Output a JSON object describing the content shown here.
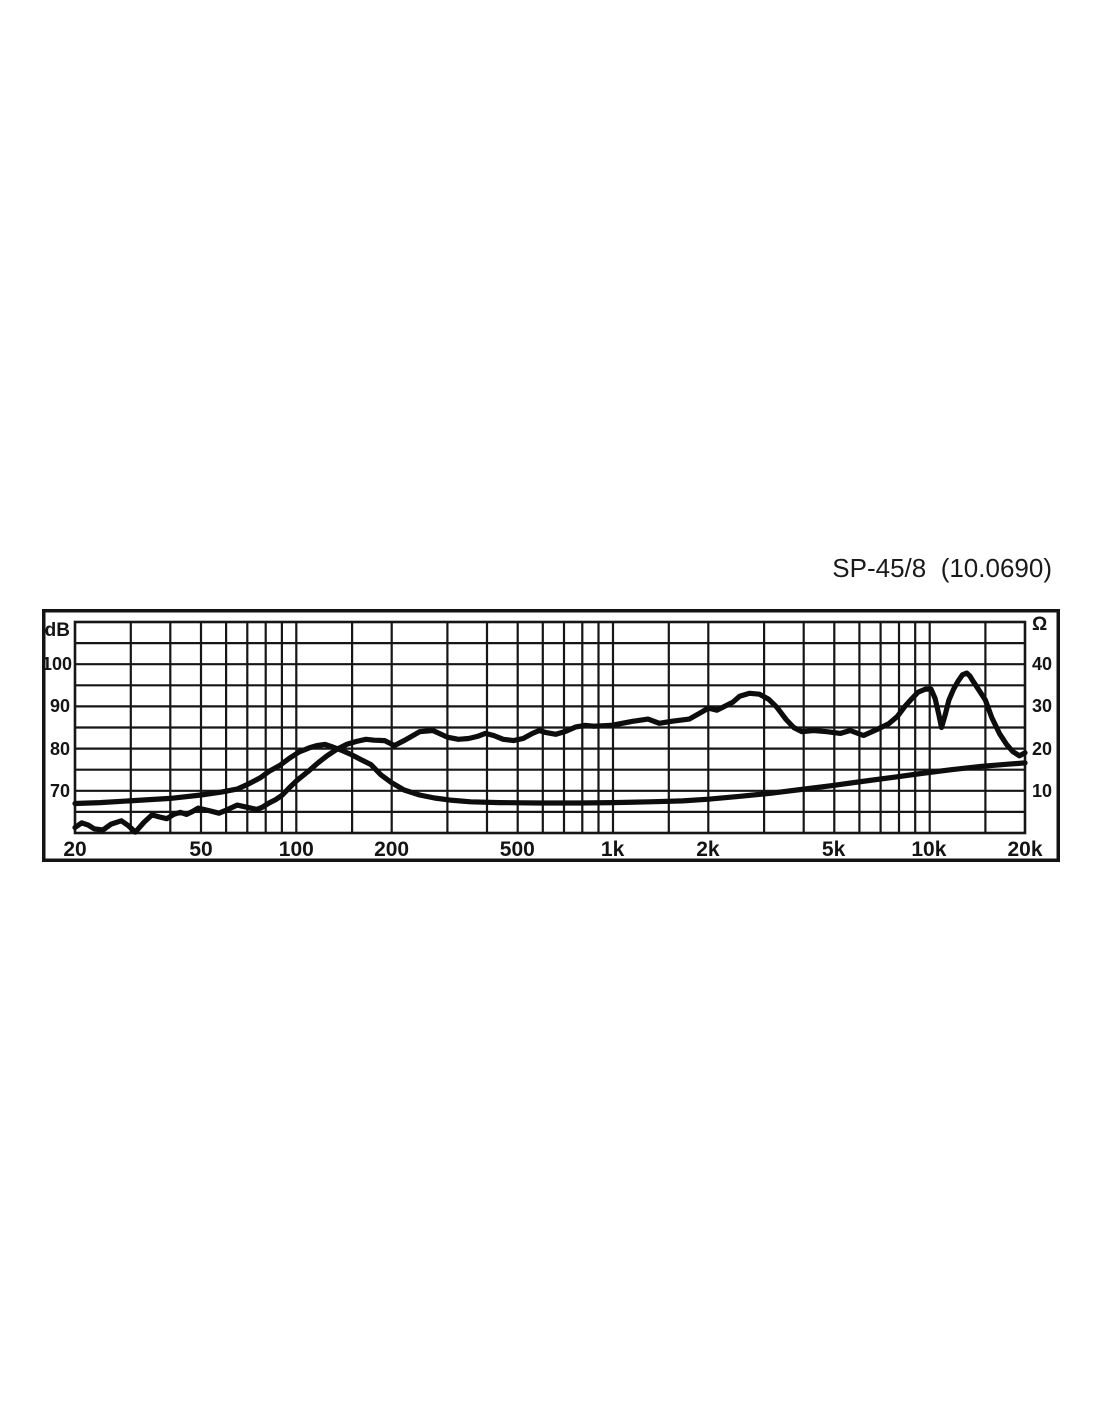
{
  "title": "SP-45/8  (10.0690)",
  "chart_data": {
    "type": "line",
    "description": "Loudspeaker frequency response (dB SPL) and impedance (ohm) vs frequency",
    "grid": true,
    "legend": "none",
    "x_axis": {
      "scale": "log",
      "min_hz": 20,
      "max_hz": 20000,
      "tick_labels": [
        "20",
        "50",
        "100",
        "200",
        "500",
        "1k",
        "2k",
        "5k",
        "10k",
        "20k"
      ],
      "tick_values_hz": [
        20,
        50,
        100,
        200,
        500,
        1000,
        2000,
        5000,
        10000,
        20000
      ],
      "gridline_values_hz": [
        30,
        40,
        50,
        60,
        70,
        80,
        90,
        100,
        150,
        200,
        300,
        400,
        500,
        600,
        700,
        800,
        900,
        1000,
        1500,
        2000,
        3000,
        4000,
        5000,
        6000,
        7000,
        8000,
        9000,
        10000,
        15000
      ]
    },
    "y_axis_left": {
      "label": "dB",
      "min": 60,
      "max": 110,
      "tick_labels": [
        "100",
        "90",
        "80",
        "70"
      ],
      "tick_values": [
        100,
        90,
        80,
        70
      ],
      "gridline_values": [
        105,
        100,
        95,
        90,
        85,
        80,
        75,
        70,
        65
      ]
    },
    "y_axis_right": {
      "label": "Ω",
      "min": 0,
      "max": 50,
      "tick_labels": [
        "40",
        "30",
        "20",
        "10"
      ],
      "tick_values": [
        40,
        30,
        20,
        10
      ]
    },
    "line_color": "#0d0d0d",
    "grid_color": "#161616",
    "series": [
      {
        "name": "frequency-response-spl",
        "unit": "dB",
        "axis": "left",
        "points": [
          [
            20,
            61.3
          ],
          [
            21,
            62.4
          ],
          [
            22,
            61.9
          ],
          [
            23,
            61.0
          ],
          [
            24.5,
            60.7
          ],
          [
            26,
            62.1
          ],
          [
            28,
            62.9
          ],
          [
            29.5,
            61.7
          ],
          [
            31,
            60.2
          ],
          [
            33,
            62.5
          ],
          [
            35,
            64.3
          ],
          [
            37,
            63.8
          ],
          [
            39,
            63.4
          ],
          [
            41,
            64.4
          ],
          [
            43,
            64.9
          ],
          [
            45,
            64.4
          ],
          [
            47,
            65.1
          ],
          [
            49,
            65.9
          ],
          [
            53,
            65.3
          ],
          [
            57,
            64.7
          ],
          [
            60,
            65.4
          ],
          [
            65,
            66.6
          ],
          [
            70,
            66.1
          ],
          [
            75,
            65.6
          ],
          [
            78,
            66.1
          ],
          [
            82,
            67.1
          ],
          [
            86,
            67.9
          ],
          [
            90,
            68.9
          ],
          [
            95,
            70.7
          ],
          [
            101,
            72.6
          ],
          [
            109,
            74.6
          ],
          [
            117,
            76.6
          ],
          [
            125,
            78.3
          ],
          [
            134,
            79.8
          ],
          [
            144,
            81.0
          ],
          [
            155,
            81.7
          ],
          [
            166,
            82.2
          ],
          [
            176,
            82.0
          ],
          [
            190,
            81.9
          ],
          [
            204,
            80.7
          ],
          [
            219,
            81.9
          ],
          [
            245,
            84.0
          ],
          [
            270,
            84.3
          ],
          [
            300,
            82.7
          ],
          [
            325,
            82.2
          ],
          [
            350,
            82.4
          ],
          [
            373,
            82.9
          ],
          [
            395,
            83.6
          ],
          [
            420,
            83.1
          ],
          [
            450,
            82.2
          ],
          [
            485,
            81.9
          ],
          [
            520,
            82.4
          ],
          [
            557,
            83.6
          ],
          [
            585,
            84.3
          ],
          [
            615,
            83.8
          ],
          [
            660,
            83.4
          ],
          [
            710,
            84.1
          ],
          [
            760,
            85.1
          ],
          [
            815,
            85.5
          ],
          [
            870,
            85.3
          ],
          [
            985,
            85.5
          ],
          [
            1160,
            86.5
          ],
          [
            1290,
            87.0
          ],
          [
            1400,
            86.0
          ],
          [
            1540,
            86.5
          ],
          [
            1740,
            87.0
          ],
          [
            1910,
            88.7
          ],
          [
            2000,
            89.6
          ],
          [
            2130,
            89.1
          ],
          [
            2390,
            91.0
          ],
          [
            2510,
            92.4
          ],
          [
            2700,
            93.1
          ],
          [
            2900,
            92.9
          ],
          [
            3100,
            91.7
          ],
          [
            3290,
            89.8
          ],
          [
            3520,
            86.9
          ],
          [
            3720,
            85.0
          ],
          [
            3950,
            84.0
          ],
          [
            4300,
            84.3
          ],
          [
            4740,
            84.0
          ],
          [
            5230,
            83.6
          ],
          [
            5610,
            84.3
          ],
          [
            6180,
            83.1
          ],
          [
            6800,
            84.5
          ],
          [
            7430,
            85.9
          ],
          [
            7900,
            87.6
          ],
          [
            8350,
            90.0
          ],
          [
            8800,
            91.9
          ],
          [
            9200,
            93.4
          ],
          [
            9700,
            94.1
          ],
          [
            10100,
            94.1
          ],
          [
            10400,
            91.9
          ],
          [
            10700,
            87.9
          ],
          [
            10900,
            85.0
          ],
          [
            11200,
            88.1
          ],
          [
            11500,
            91.5
          ],
          [
            11900,
            94.1
          ],
          [
            12300,
            96.0
          ],
          [
            12700,
            97.5
          ],
          [
            13100,
            97.9
          ],
          [
            13400,
            97.2
          ],
          [
            13700,
            96.0
          ],
          [
            15000,
            91.5
          ],
          [
            15700,
            87.4
          ],
          [
            16600,
            83.6
          ],
          [
            17500,
            81.0
          ],
          [
            18300,
            79.3
          ],
          [
            19200,
            78.3
          ],
          [
            20000,
            79.0
          ]
        ]
      },
      {
        "name": "impedance",
        "unit": "ohm",
        "axis": "right",
        "points": [
          [
            20,
            7.0
          ],
          [
            24,
            7.2
          ],
          [
            31,
            7.7
          ],
          [
            40,
            8.2
          ],
          [
            50,
            9.0
          ],
          [
            58,
            9.7
          ],
          [
            65,
            10.4
          ],
          [
            71,
            11.7
          ],
          [
            77,
            13.1
          ],
          [
            82,
            14.6
          ],
          [
            89,
            16.1
          ],
          [
            95,
            17.7
          ],
          [
            102,
            19.2
          ],
          [
            110,
            20.2
          ],
          [
            116,
            20.7
          ],
          [
            123,
            21.0
          ],
          [
            130,
            20.4
          ],
          [
            138,
            19.7
          ],
          [
            148,
            18.7
          ],
          [
            159,
            17.5
          ],
          [
            172,
            16.2
          ],
          [
            185,
            13.8
          ],
          [
            200,
            11.9
          ],
          [
            219,
            10.2
          ],
          [
            245,
            9.0
          ],
          [
            273,
            8.3
          ],
          [
            306,
            7.8
          ],
          [
            355,
            7.4
          ],
          [
            438,
            7.2
          ],
          [
            585,
            7.1
          ],
          [
            785,
            7.1
          ],
          [
            1000,
            7.2
          ],
          [
            1310,
            7.4
          ],
          [
            1660,
            7.6
          ],
          [
            2000,
            8.0
          ],
          [
            2520,
            8.7
          ],
          [
            3140,
            9.4
          ],
          [
            3920,
            10.3
          ],
          [
            4890,
            11.2
          ],
          [
            6100,
            12.2
          ],
          [
            7530,
            13.1
          ],
          [
            9390,
            14.1
          ],
          [
            11700,
            15.0
          ],
          [
            14600,
            15.8
          ],
          [
            17650,
            16.3
          ],
          [
            20000,
            16.6
          ]
        ]
      }
    ]
  }
}
